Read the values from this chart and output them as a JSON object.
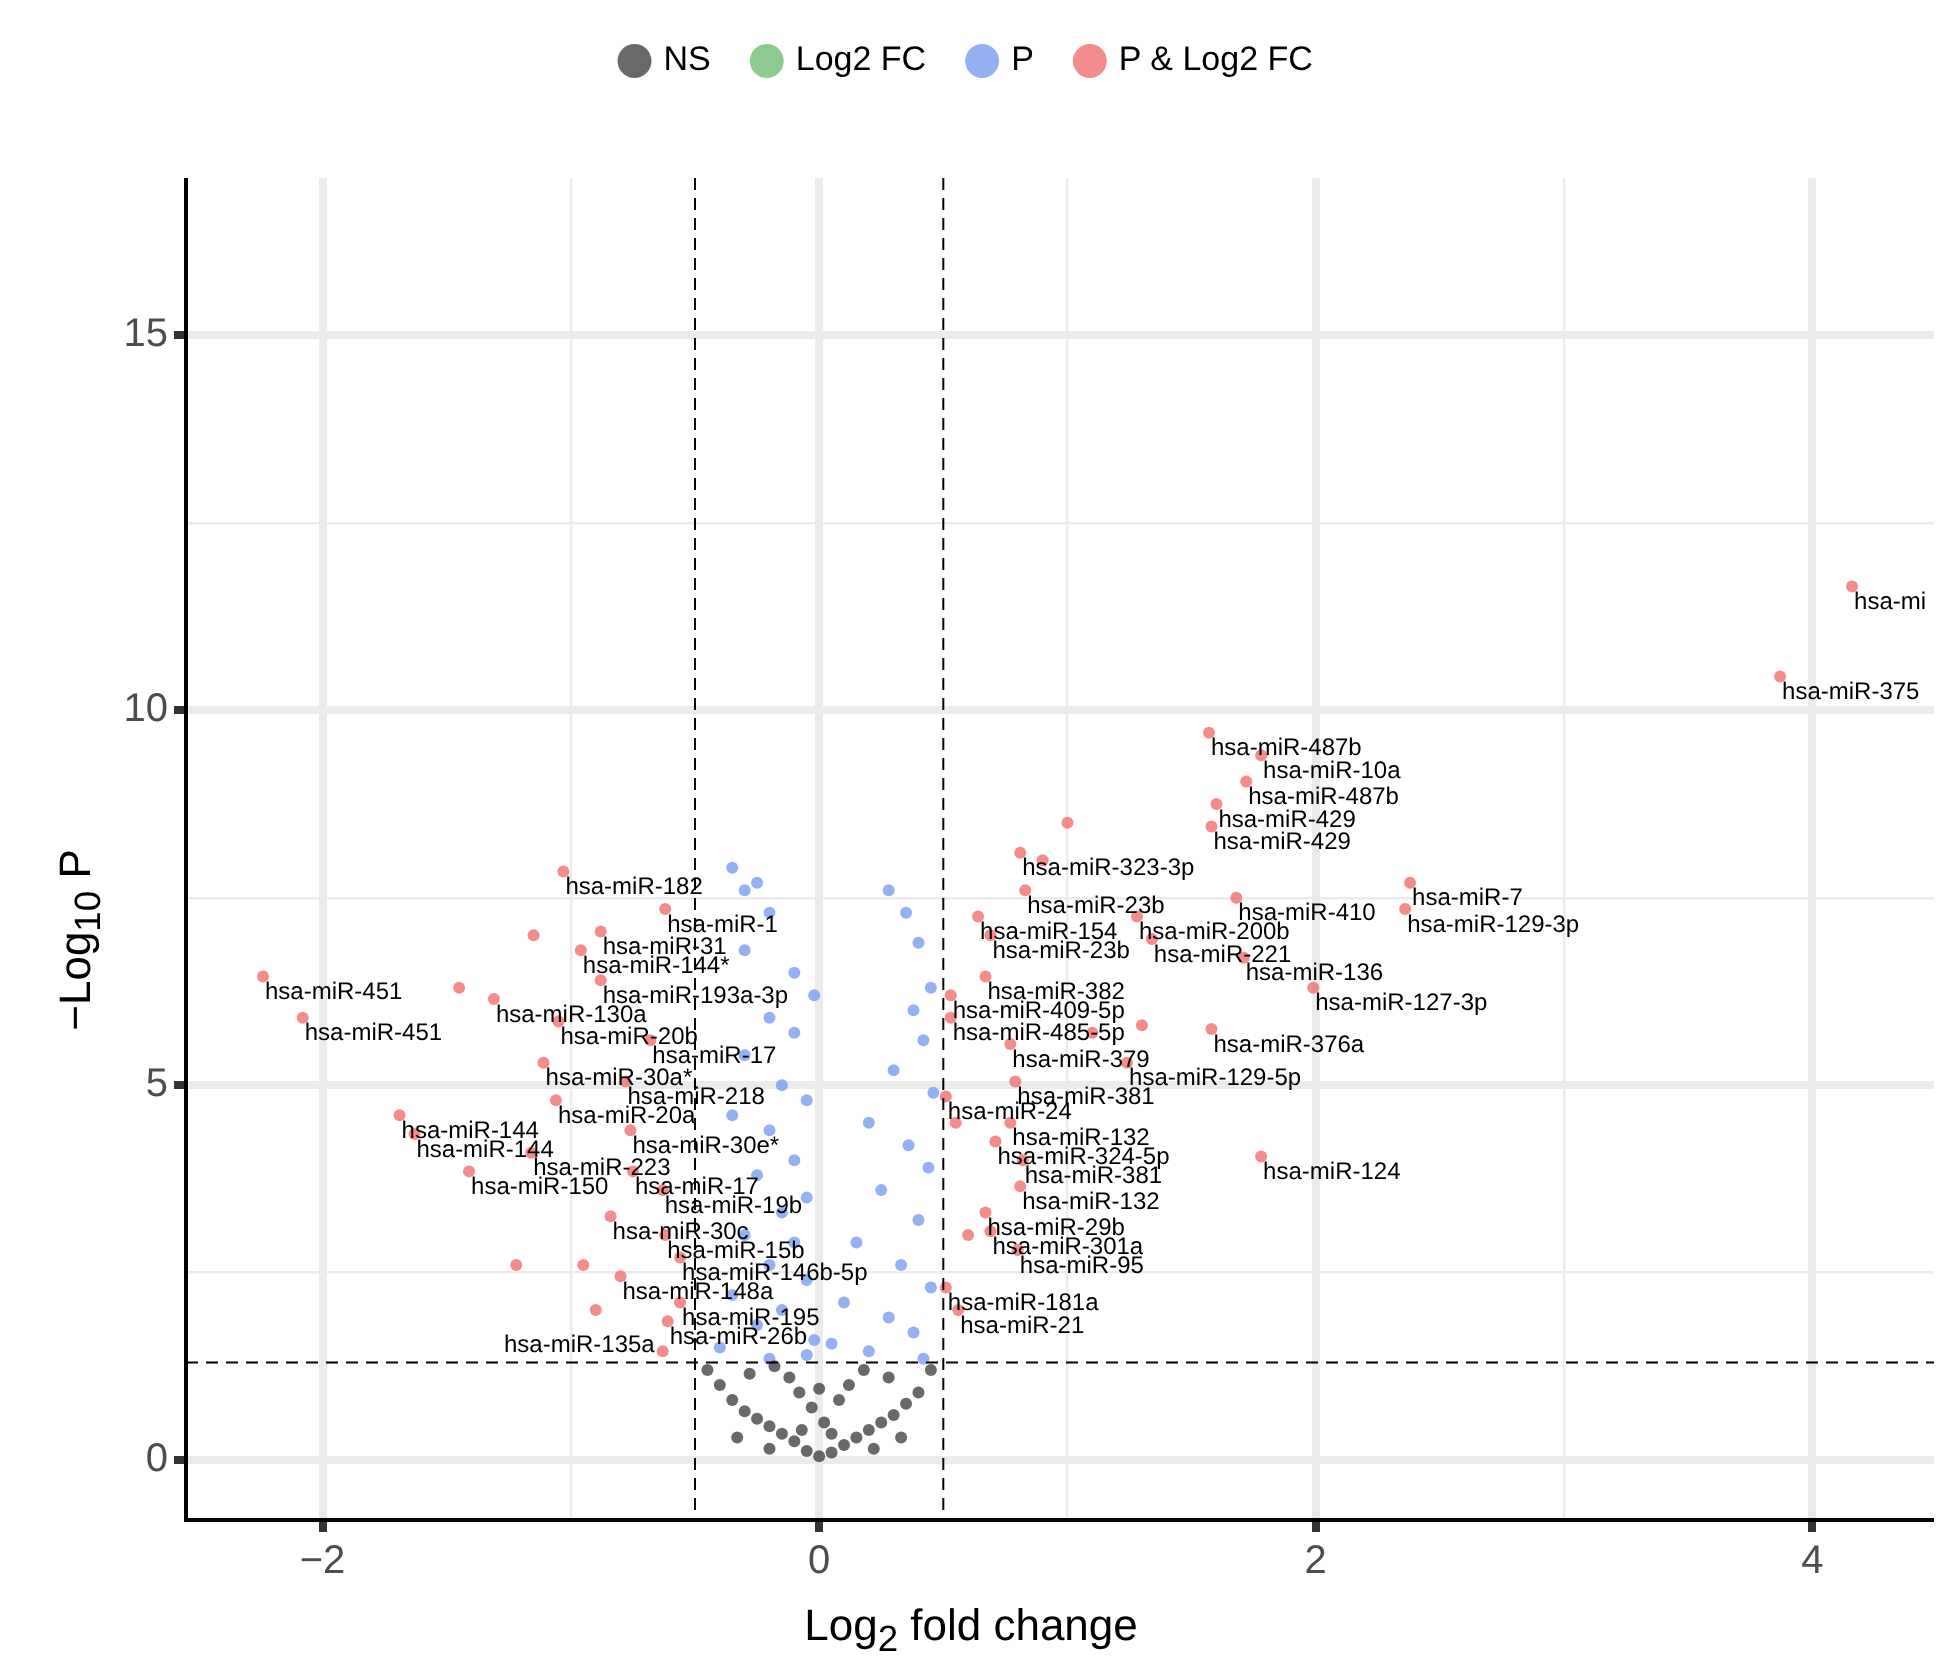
{
  "chart_data": {
    "type": "scatter",
    "xlabel": "Log$_{2}$ fold change",
    "ylabel": "−Log$_{10}$ P",
    "xlim": [
      -2.55,
      4.49
    ],
    "ylim": [
      -0.8,
      17.1
    ],
    "xticks": [
      -2,
      {
        "value": -1,
        "label": null
      },
      0,
      {
        "value": 1,
        "label": null
      },
      2,
      {
        "value": 3,
        "label": null
      },
      4
    ],
    "yticks": [
      0,
      {
        "value": 2.5,
        "label": null
      },
      5,
      {
        "value": 7.5,
        "label": null
      },
      10,
      {
        "value": 12.5,
        "label": null
      },
      15
    ],
    "grid": true,
    "legend": "top",
    "marker": "circle",
    "ref_lines": [
      {
        "axis": "x",
        "value": -0.5,
        "line_style": "dashed",
        "color": "#000000"
      },
      {
        "axis": "x",
        "value": 0.5,
        "line_style": "dashed",
        "color": "#000000"
      },
      {
        "axis": "y",
        "value": 1.3,
        "line_style": "dashed",
        "color": "#000000"
      }
    ],
    "series": [
      {
        "name": "NS",
        "color": "#444444",
        "x": [
          0,
          0.05,
          -0.05,
          0.1,
          -0.1,
          0.15,
          -0.15,
          0.2,
          -0.2,
          0.25,
          -0.25,
          0.02,
          -0.03,
          0.08,
          -0.08,
          0.3,
          -0.3,
          0.35,
          -0.35,
          0.12,
          -0.12,
          0.18,
          -0.18,
          0.4,
          -0.4,
          0.28,
          -0.28,
          0.05,
          -0.07,
          0.45,
          -0.45,
          0,
          0.22,
          -0.2,
          0.33,
          -0.33
        ],
        "values": [
          0.05,
          0.1,
          0.12,
          0.2,
          0.25,
          0.3,
          0.35,
          0.4,
          0.45,
          0.5,
          0.55,
          0.5,
          0.7,
          0.8,
          0.9,
          0.6,
          0.65,
          0.75,
          0.8,
          1,
          1.1,
          1.2,
          1.25,
          0.9,
          1,
          1.1,
          1.15,
          0.35,
          0.4,
          1.2,
          1.2,
          0.95,
          0.15,
          0.15,
          0.3,
          0.3
        ]
      },
      {
        "name": "Log2 FC",
        "color": "#6fbf73"
      },
      {
        "name": "P",
        "color": "#7b9ef0",
        "x": [
          -0.35,
          -0.3,
          -0.25,
          -0.2,
          -0.3,
          -0.02,
          -0.1,
          -0.2,
          -0.1,
          -0.3,
          -0.15,
          -0.05,
          -0.35,
          -0.2,
          -0.1,
          -0.25,
          -0.05,
          -0.15,
          -0.3,
          -0.1,
          -0.2,
          -0.05,
          -0.35,
          -0.15,
          -0.25,
          -0.02,
          -0.4,
          -0.05,
          -0.2,
          0.28,
          0.35,
          0.4,
          0.45,
          0.38,
          0.42,
          0.3,
          0.46,
          0.2,
          0.36,
          0.44,
          0.25,
          0.4,
          0.15,
          0.33,
          0.45,
          0.1,
          0.28,
          0.38,
          0.05,
          0.2,
          0.42
        ],
        "values": [
          7.9,
          7.6,
          7.7,
          7.3,
          6.8,
          6.2,
          6.5,
          5.9,
          5.7,
          5.4,
          5,
          4.8,
          4.6,
          4.4,
          4,
          3.8,
          3.5,
          3.3,
          3,
          2.9,
          2.6,
          2.4,
          2.2,
          2,
          1.8,
          1.6,
          1.5,
          1.4,
          1.35,
          7.6,
          7.3,
          6.9,
          6.3,
          6,
          5.6,
          5.2,
          4.9,
          4.5,
          4.2,
          3.9,
          3.6,
          3.2,
          2.9,
          2.6,
          2.3,
          2.1,
          1.9,
          1.7,
          1.55,
          1.45,
          1.35
        ]
      },
      {
        "name": "P & Log2 FC",
        "color": "#f07070",
        "x": [
          4.16,
          3.87,
          1.57,
          1.78,
          1.72,
          1.6,
          1.58,
          0.81,
          0.83,
          1.68,
          2.38,
          2.36,
          0.64,
          1.28,
          0.69,
          1.34,
          1.71,
          0.67,
          1.99,
          0.53,
          0.53,
          1.58,
          0.77,
          1.24,
          0.79,
          0.51,
          0.77,
          0.71,
          0.82,
          1.78,
          0.81,
          0.67,
          0.69,
          0.8,
          0.51,
          0.56,
          -1.03,
          -0.62,
          -0.88,
          -0.96,
          -2.24,
          -0.88,
          -1.31,
          -2.08,
          -1.05,
          -0.68,
          -1.11,
          -0.78,
          -1.06,
          -1.69,
          -1.63,
          -0.76,
          -1.16,
          -1.41,
          -0.75,
          -0.63,
          -0.84,
          -0.62,
          -0.56,
          -0.8,
          -0.56,
          -0.61,
          -0.63,
          -1.15,
          -1.45,
          -1.22,
          -0.9,
          -0.95,
          1,
          0.9,
          1.1,
          1.3,
          0.55,
          0.6
        ],
        "values": [
          11.65,
          10.45,
          9.7,
          9.4,
          9.05,
          8.75,
          8.45,
          8.1,
          7.6,
          7.5,
          7.7,
          7.35,
          7.25,
          7.25,
          7,
          6.95,
          6.7,
          6.45,
          6.3,
          6.2,
          5.9,
          5.75,
          5.55,
          5.3,
          5.05,
          4.85,
          4.5,
          4.25,
          4,
          4.05,
          3.65,
          3.3,
          3.05,
          2.8,
          2.3,
          2,
          7.85,
          7.35,
          7.05,
          6.8,
          6.45,
          6.4,
          6.15,
          5.9,
          5.85,
          5.6,
          5.3,
          5.05,
          4.8,
          4.6,
          4.35,
          4.4,
          4.1,
          3.85,
          3.85,
          3.6,
          3.25,
          3,
          2.7,
          2.45,
          2.1,
          1.85,
          1.45,
          7,
          6.3,
          2.6,
          2,
          2.6,
          8.5,
          8,
          5.7,
          5.8,
          4.5,
          3
        ]
      }
    ],
    "annotations": [
      {
        "text": "hsa-mi",
        "x": 4.16,
        "y": 11.65
      },
      {
        "text": "hsa-miR-375",
        "x": 3.87,
        "y": 10.45
      },
      {
        "text": "hsa-miR-487b",
        "x": 1.57,
        "y": 9.7
      },
      {
        "text": "hsa-miR-10a",
        "x": 1.78,
        "y": 9.4
      },
      {
        "text": "hsa-miR-487b",
        "x": 1.72,
        "y": 9.05
      },
      {
        "text": "hsa-miR-429",
        "x": 1.6,
        "y": 8.75
      },
      {
        "text": "hsa-miR-429",
        "x": 1.58,
        "y": 8.45
      },
      {
        "text": "hsa-miR-323-3p",
        "x": 0.81,
        "y": 8.1
      },
      {
        "text": "hsa-miR-23b",
        "x": 0.83,
        "y": 7.6
      },
      {
        "text": "hsa-miR-410",
        "x": 1.68,
        "y": 7.5
      },
      {
        "text": "hsa-miR-7",
        "x": 2.38,
        "y": 7.7
      },
      {
        "text": "hsa-miR-129-3p",
        "x": 2.36,
        "y": 7.35
      },
      {
        "text": "hsa-miR-154",
        "x": 0.64,
        "y": 7.25
      },
      {
        "text": "hsa-miR-200b",
        "x": 1.28,
        "y": 7.25
      },
      {
        "text": "hsa-miR-23b",
        "x": 0.69,
        "y": 7
      },
      {
        "text": "hsa-miR-221",
        "x": 1.34,
        "y": 6.95
      },
      {
        "text": "hsa-miR-136",
        "x": 1.71,
        "y": 6.7
      },
      {
        "text": "hsa-miR-382",
        "x": 0.67,
        "y": 6.45
      },
      {
        "text": "hsa-miR-127-3p",
        "x": 1.99,
        "y": 6.3
      },
      {
        "text": "hsa-miR-409-5p",
        "x": 0.53,
        "y": 6.2
      },
      {
        "text": "hsa-miR-485-5p",
        "x": 0.53,
        "y": 5.9
      },
      {
        "text": "hsa-miR-376a",
        "x": 1.58,
        "y": 5.75
      },
      {
        "text": "hsa-miR-379",
        "x": 0.77,
        "y": 5.55
      },
      {
        "text": "hsa-miR-129-5p",
        "x": 1.24,
        "y": 5.3
      },
      {
        "text": "hsa-miR-381",
        "x": 0.79,
        "y": 5.05
      },
      {
        "text": "hsa-miR-24",
        "x": 0.51,
        "y": 4.85
      },
      {
        "text": "hsa-miR-132",
        "x": 0.77,
        "y": 4.5
      },
      {
        "text": "hsa-miR-324-5p",
        "x": 0.71,
        "y": 4.25
      },
      {
        "text": "hsa-miR-381",
        "x": 0.82,
        "y": 4
      },
      {
        "text": "hsa-miR-124",
        "x": 1.78,
        "y": 4.05
      },
      {
        "text": "hsa-miR-132",
        "x": 0.81,
        "y": 3.65
      },
      {
        "text": "hsa-miR-29b",
        "x": 0.67,
        "y": 3.3
      },
      {
        "text": "hsa-miR-301a",
        "x": 0.69,
        "y": 3.05
      },
      {
        "text": "hsa-miR-95",
        "x": 0.8,
        "y": 2.8
      },
      {
        "text": "hsa-miR-181a",
        "x": 0.51,
        "y": 2.3
      },
      {
        "text": "hsa-miR-21",
        "x": 0.56,
        "y": 2
      },
      {
        "text": "hsa-miR-182",
        "x": -1.03,
        "y": 7.85
      },
      {
        "text": "hsa-miR-1",
        "x": -0.62,
        "y": 7.35
      },
      {
        "text": "hsa-miR-31",
        "x": -0.88,
        "y": 7.05
      },
      {
        "text": "hsa-miR-144*",
        "x": -0.96,
        "y": 6.8
      },
      {
        "text": "hsa-miR-451",
        "x": -2.24,
        "y": 6.45
      },
      {
        "text": "hsa-miR-193a-3p",
        "x": -0.88,
        "y": 6.4
      },
      {
        "text": "hsa-miR-130a",
        "x": -1.31,
        "y": 6.15
      },
      {
        "text": "hsa-miR-451",
        "x": -2.08,
        "y": 5.9
      },
      {
        "text": "hsa-miR-20b",
        "x": -1.05,
        "y": 5.85
      },
      {
        "text": "hsa-miR-17",
        "x": -0.68,
        "y": 5.6
      },
      {
        "text": "hsa-miR-30a*",
        "x": -1.11,
        "y": 5.3
      },
      {
        "text": "hsa-miR-218",
        "x": -0.78,
        "y": 5.05
      },
      {
        "text": "hsa-miR-20a",
        "x": -1.06,
        "y": 4.8
      },
      {
        "text": "hsa-miR-144",
        "x": -1.69,
        "y": 4.6
      },
      {
        "text": "hsa-miR-144",
        "x": -1.63,
        "y": 4.35
      },
      {
        "text": "hsa-miR-30e*",
        "x": -0.76,
        "y": 4.4
      },
      {
        "text": "hsa-miR-223",
        "x": -1.16,
        "y": 4.1
      },
      {
        "text": "hsa-miR-150",
        "x": -1.41,
        "y": 3.85
      },
      {
        "text": "hsa-miR-17",
        "x": -0.75,
        "y": 3.85
      },
      {
        "text": "hsa-miR-19b",
        "x": -0.63,
        "y": 3.6
      },
      {
        "text": "hsa-miR-30c",
        "x": -0.84,
        "y": 3.25
      },
      {
        "text": "hsa-miR-15b",
        "x": -0.62,
        "y": 3
      },
      {
        "text": "hsa-miR-146b-5p",
        "x": -0.56,
        "y": 2.7
      },
      {
        "text": "hsa-miR-148a",
        "x": -0.8,
        "y": 2.45
      },
      {
        "text": "hsa-miR-195",
        "x": -0.56,
        "y": 2.1
      },
      {
        "text": "hsa-miR-26b",
        "x": -0.61,
        "y": 1.85
      },
      {
        "text": "hsa-miR-135a",
        "x": -0.63,
        "y": 1.45
      }
    ]
  }
}
